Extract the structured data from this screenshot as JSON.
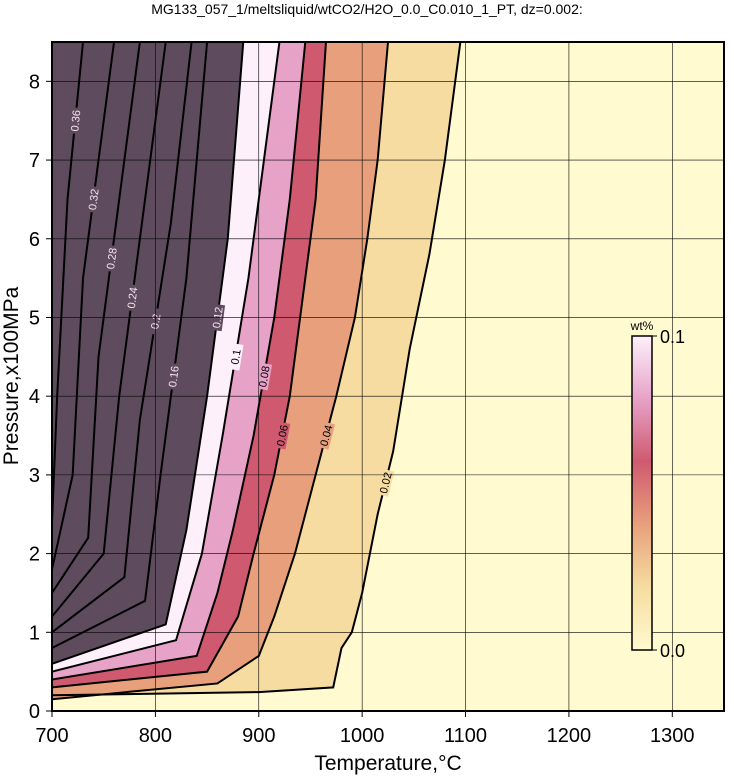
{
  "chart_data": {
    "type": "contour",
    "title": "MG133_057_1/meltsliquid/wtCO2/H2O_0.0_C0.010_1_PT, dz=0.002:",
    "xlabel": "Temperature,°C",
    "ylabel": "Pressure,x100MPa",
    "xlim": [
      700,
      1350
    ],
    "ylim": [
      0,
      8.5
    ],
    "xticks": [
      700,
      800,
      900,
      1000,
      1100,
      1200,
      1300
    ],
    "yticks": [
      0,
      1,
      2,
      3,
      4,
      5,
      6,
      7,
      8
    ],
    "grid": true,
    "colorbar": {
      "label": "wt%",
      "ticks": [
        {
          "value": 0,
          "label": "0.0"
        },
        0.1
      ],
      "colormap": [
        "#fffad0",
        "#f6dca0",
        "#e8a07c",
        "#cf5a70",
        "#e7a2c8",
        "#fdf0fb"
      ],
      "over_color": "#5e4c5e"
    },
    "contours": [
      {
        "level": 0.02,
        "x": [
          700,
          900,
          972,
          980,
          990,
          1000,
          1015,
          1030,
          1046,
          1065,
          1080,
          1095
        ],
        "y": [
          0.2,
          0.24,
          0.3,
          0.8,
          1.0,
          1.5,
          2.5,
          3.3,
          4.6,
          5.8,
          7,
          8.5
        ]
      },
      {
        "level": 0.04,
        "x": [
          700,
          860,
          900,
          915,
          935,
          955,
          975,
          993,
          1005,
          1015,
          1025
        ],
        "y": [
          0.15,
          0.35,
          0.7,
          1.2,
          2,
          3,
          4,
          5,
          6,
          7,
          8.5
        ]
      },
      {
        "level": 0.06,
        "x": [
          700,
          850,
          880,
          895,
          915,
          930,
          943,
          955,
          965
        ],
        "y": [
          0.3,
          0.5,
          1.2,
          2,
          3,
          4,
          5.3,
          6.5,
          8.5
        ]
      },
      {
        "level": 0.08,
        "x": [
          700,
          840,
          860,
          875,
          895,
          915,
          930,
          945
        ],
        "y": [
          0.4,
          0.7,
          1.5,
          2.3,
          3.5,
          5,
          6.5,
          8.5
        ]
      },
      {
        "level": 0.1,
        "x": [
          700,
          820,
          845,
          865,
          890,
          905,
          920
        ],
        "y": [
          0.5,
          0.9,
          2,
          3.5,
          5.5,
          7,
          8.5
        ]
      },
      {
        "level": 0.12,
        "x": [
          700,
          810,
          830,
          850,
          870,
          885
        ],
        "y": [
          0.6,
          1.1,
          2.3,
          4,
          6,
          8.5
        ]
      },
      {
        "level": 0.16,
        "x": [
          700,
          790,
          805,
          830,
          850
        ],
        "y": [
          0.8,
          1.4,
          3,
          5.5,
          8.5
        ]
      },
      {
        "level": 0.2,
        "x": [
          700,
          770,
          785,
          815,
          835
        ],
        "y": [
          1.0,
          1.7,
          3.7,
          6.2,
          8.5
        ]
      },
      {
        "level": 0.24,
        "x": [
          700,
          750,
          765,
          790,
          810
        ],
        "y": [
          1.2,
          2,
          4,
          6.5,
          8.5
        ]
      },
      {
        "level": 0.28,
        "x": [
          700,
          735,
          745,
          770,
          785
        ],
        "y": [
          1.5,
          2.2,
          4.5,
          7,
          8.5
        ]
      },
      {
        "level": 0.32,
        "x": [
          700,
          720,
          730,
          750,
          760
        ],
        "y": [
          1.8,
          3,
          5.5,
          7.5,
          8.5
        ]
      },
      {
        "level": 0.36,
        "x": [
          700,
          705,
          715,
          730
        ],
        "y": [
          2.4,
          4,
          6.5,
          8.5
        ]
      }
    ]
  }
}
